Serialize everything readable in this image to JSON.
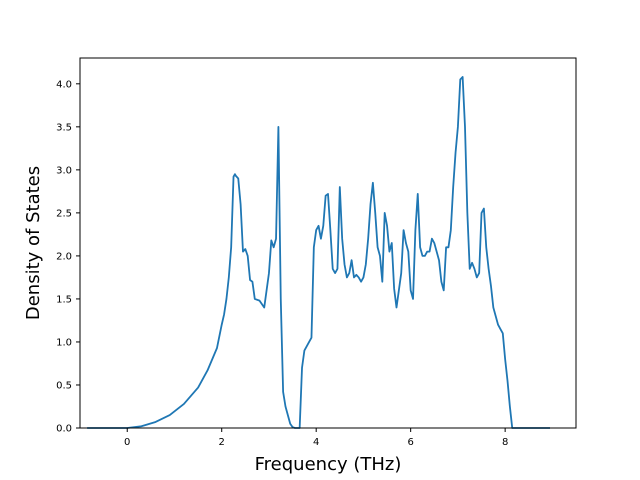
{
  "chart_data": {
    "type": "line",
    "title": "",
    "xlabel": "Frequency (THz)",
    "ylabel": "Density of States",
    "xlim": [
      -1.0,
      9.5
    ],
    "ylim": [
      0.0,
      4.3
    ],
    "xticks": [
      0,
      2,
      4,
      6,
      8
    ],
    "xtick_labels": [
      "0",
      "2",
      "4",
      "6",
      "8"
    ],
    "yticks": [
      0.0,
      0.5,
      1.0,
      1.5,
      2.0,
      2.5,
      3.0,
      3.5,
      4.0
    ],
    "ytick_labels": [
      "0.0",
      "0.5",
      "1.0",
      "1.5",
      "2.0",
      "2.5",
      "3.0",
      "3.5",
      "4.0"
    ],
    "grid": false,
    "legend": "none",
    "line_color": "#1f77b4",
    "series": [
      {
        "x": [
          -0.85,
          0.0,
          0.3,
          0.6,
          0.9,
          1.2,
          1.5,
          1.7,
          1.9,
          2.0,
          2.05,
          2.1,
          2.15,
          2.2,
          2.25,
          2.28,
          2.3,
          2.35,
          2.4,
          2.45,
          2.5,
          2.55,
          2.6,
          2.65,
          2.7,
          2.8,
          2.9,
          3.0,
          3.05,
          3.1,
          3.15,
          3.2,
          3.25,
          3.3,
          3.35,
          3.4,
          3.45,
          3.5,
          3.55,
          3.65,
          3.7,
          3.75,
          3.85,
          3.9,
          3.95,
          4.0,
          4.05,
          4.1,
          4.15,
          4.2,
          4.25,
          4.3,
          4.35,
          4.4,
          4.45,
          4.5,
          4.55,
          4.6,
          4.65,
          4.7,
          4.75,
          4.8,
          4.85,
          4.9,
          4.95,
          5.0,
          5.05,
          5.1,
          5.15,
          5.2,
          5.25,
          5.3,
          5.35,
          5.4,
          5.45,
          5.5,
          5.55,
          5.6,
          5.65,
          5.7,
          5.75,
          5.8,
          5.85,
          5.9,
          5.95,
          6.0,
          6.05,
          6.1,
          6.15,
          6.2,
          6.25,
          6.3,
          6.35,
          6.4,
          6.45,
          6.5,
          6.55,
          6.6,
          6.65,
          6.7,
          6.75,
          6.8,
          6.85,
          6.9,
          6.95,
          7.0,
          7.05,
          7.1,
          7.15,
          7.2,
          7.25,
          7.3,
          7.35,
          7.4,
          7.45,
          7.5,
          7.55,
          7.6,
          7.65,
          7.7,
          7.75,
          7.8,
          7.85,
          7.9,
          7.95,
          8.0,
          8.05,
          8.1,
          8.15,
          8.2,
          8.3,
          8.5,
          8.95
        ],
        "y": [
          0.0,
          0.0,
          0.02,
          0.07,
          0.15,
          0.28,
          0.47,
          0.67,
          0.93,
          1.2,
          1.32,
          1.5,
          1.75,
          2.1,
          2.92,
          2.95,
          2.93,
          2.9,
          2.6,
          2.05,
          2.08,
          2.0,
          1.72,
          1.7,
          1.5,
          1.48,
          1.4,
          1.8,
          2.18,
          2.1,
          2.2,
          3.5,
          1.5,
          0.42,
          0.25,
          0.15,
          0.05,
          0.01,
          0.0,
          0.0,
          0.7,
          0.9,
          1.0,
          1.05,
          2.1,
          2.3,
          2.35,
          2.2,
          2.35,
          2.7,
          2.72,
          2.3,
          1.85,
          1.8,
          1.85,
          2.8,
          2.2,
          1.9,
          1.75,
          1.8,
          1.95,
          1.75,
          1.78,
          1.75,
          1.7,
          1.75,
          1.9,
          2.2,
          2.6,
          2.85,
          2.5,
          2.1,
          2.0,
          1.7,
          2.5,
          2.35,
          2.05,
          2.15,
          1.62,
          1.4,
          1.6,
          1.8,
          2.3,
          2.15,
          2.05,
          1.6,
          1.5,
          2.3,
          2.72,
          2.1,
          2.0,
          2.0,
          2.05,
          2.05,
          2.2,
          2.15,
          2.05,
          1.95,
          1.7,
          1.6,
          2.1,
          2.1,
          2.3,
          2.8,
          3.2,
          3.5,
          4.05,
          4.08,
          3.5,
          2.5,
          1.85,
          1.92,
          1.85,
          1.75,
          1.8,
          2.5,
          2.55,
          2.1,
          1.85,
          1.65,
          1.4,
          1.3,
          1.2,
          1.15,
          1.1,
          0.8,
          0.55,
          0.25,
          0.0,
          0.0,
          0.0,
          0.0,
          0.0
        ]
      }
    ]
  }
}
